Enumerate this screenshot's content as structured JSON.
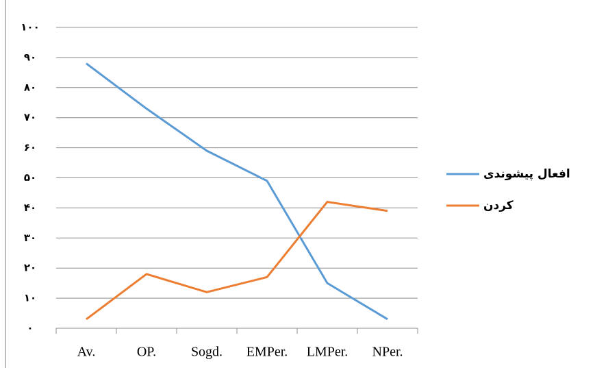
{
  "chart_data": {
    "type": "line",
    "categories": [
      "Av.",
      "OP.",
      "Sogd.",
      "EMPer.",
      "LMPer.",
      "NPer."
    ],
    "series": [
      {
        "name": "افعال پیشوندی",
        "color": "#5b9bd5",
        "values": [
          88,
          73,
          59,
          49,
          15,
          3
        ]
      },
      {
        "name": "کردن",
        "color": "#ed7d31",
        "values": [
          3,
          18,
          12,
          17,
          42,
          39
        ]
      }
    ],
    "ylim": [
      0,
      100
    ],
    "yticks": [
      {
        "value": 0,
        "label": "۰"
      },
      {
        "value": 10,
        "label": "۱۰"
      },
      {
        "value": 20,
        "label": "۲۰"
      },
      {
        "value": 30,
        "label": "۳۰"
      },
      {
        "value": 40,
        "label": "۴۰"
      },
      {
        "value": 50,
        "label": "۵۰"
      },
      {
        "value": 60,
        "label": "۶۰"
      },
      {
        "value": 70,
        "label": "۷۰"
      },
      {
        "value": 80,
        "label": "۸۰"
      },
      {
        "value": 90,
        "label": "۹۰"
      },
      {
        "value": 100,
        "label": "۱۰۰"
      }
    ],
    "grid": true,
    "legend": "right"
  }
}
